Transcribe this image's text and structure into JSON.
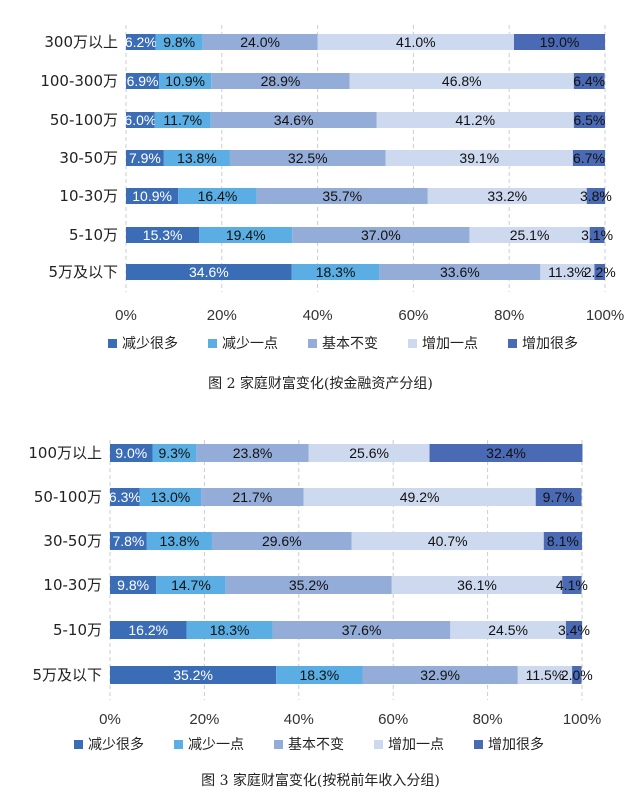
{
  "legend_colors": [
    "#3a6db5",
    "#5aaee3",
    "#93acd8",
    "#cdd9ee",
    "#4b6ab6"
  ],
  "chart_data": [
    {
      "type": "bar",
      "orientation": "horizontal",
      "stacked": true,
      "title": "图 2 家庭财富变化(按金融资产分组)",
      "categories": [
        "300万以上",
        "100-300万",
        "50-100万",
        "30-50万",
        "10-30万",
        "5-10万",
        "5万及以下"
      ],
      "series": [
        {
          "name": "减少很多",
          "values": [
            6.2,
            6.9,
            6.0,
            7.9,
            10.9,
            15.3,
            34.6
          ]
        },
        {
          "name": "减少一点",
          "values": [
            9.8,
            10.9,
            11.7,
            13.8,
            16.4,
            19.4,
            18.3
          ]
        },
        {
          "name": "基本不变",
          "values": [
            24.0,
            28.9,
            34.6,
            32.5,
            35.7,
            37.0,
            33.6
          ]
        },
        {
          "name": "增加一点",
          "values": [
            41.0,
            46.8,
            41.2,
            39.1,
            33.2,
            25.1,
            11.3
          ]
        },
        {
          "name": "增加很多",
          "values": [
            19.0,
            6.4,
            6.5,
            6.7,
            3.8,
            3.1,
            2.2
          ]
        }
      ],
      "xticks": [
        "0%",
        "20%",
        "40%",
        "60%",
        "80%",
        "100%"
      ],
      "xlim": [
        0,
        100
      ],
      "grid": "vertical dashed",
      "legend_position": "bottom"
    },
    {
      "type": "bar",
      "orientation": "horizontal",
      "stacked": true,
      "title": "图 3 家庭财富变化(按税前年收入分组)",
      "categories": [
        "100万以上",
        "50-100万",
        "30-50万",
        "10-30万",
        "5-10万",
        "5万及以下"
      ],
      "series": [
        {
          "name": "减少很多",
          "values": [
            9.0,
            6.3,
            7.8,
            9.8,
            16.2,
            35.2
          ]
        },
        {
          "name": "减少一点",
          "values": [
            9.3,
            13.0,
            13.8,
            14.7,
            18.3,
            18.3
          ]
        },
        {
          "name": "基本不变",
          "values": [
            23.8,
            21.7,
            29.6,
            35.2,
            37.6,
            32.9
          ]
        },
        {
          "name": "增加一点",
          "values": [
            25.6,
            49.2,
            40.7,
            36.1,
            24.5,
            11.5
          ]
        },
        {
          "name": "增加很多",
          "values": [
            32.4,
            9.7,
            8.1,
            4.1,
            3.4,
            2.0
          ]
        }
      ],
      "xticks": [
        "0%",
        "20%",
        "40%",
        "60%",
        "80%",
        "100%"
      ],
      "xlim": [
        0,
        100
      ],
      "grid": "vertical dashed",
      "legend_position": "bottom"
    }
  ]
}
